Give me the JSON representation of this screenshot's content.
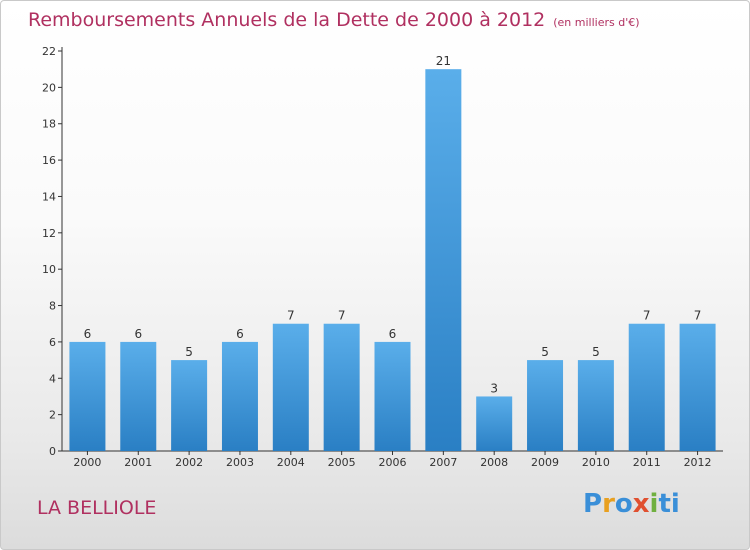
{
  "title": "Remboursements Annuels de la Dette de 2000 à 2012",
  "unit_note": "(en milliers d'€)",
  "commune": "LA BELLIOLE",
  "logo": {
    "p": "P",
    "r": "r",
    "o": "o",
    "x": "x",
    "i": "i",
    "ti": "ti"
  },
  "colors": {
    "title": "#b03060",
    "bar_light": "#5aaeea",
    "bar_dark": "#2a7fc4",
    "axis": "#333333",
    "grid": "#cccccc"
  },
  "chart_data": {
    "type": "bar",
    "categories": [
      "2000",
      "2001",
      "2002",
      "2003",
      "2004",
      "2005",
      "2006",
      "2007",
      "2008",
      "2009",
      "2010",
      "2011",
      "2012"
    ],
    "values": [
      6,
      6,
      5,
      6,
      7,
      7,
      6,
      21,
      3,
      5,
      5,
      7,
      7
    ],
    "ylim": [
      0,
      22
    ],
    "yticks": [
      0,
      2,
      4,
      6,
      8,
      10,
      12,
      14,
      16,
      18,
      20,
      22
    ],
    "grid": false,
    "title": "Remboursements Annuels de la Dette de 2000 à 2012"
  }
}
